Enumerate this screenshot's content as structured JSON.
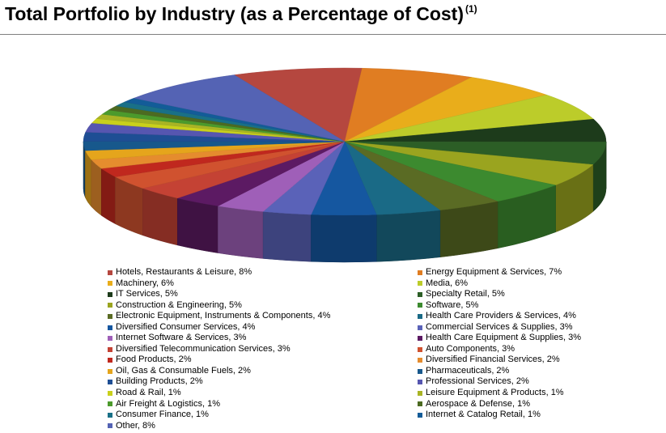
{
  "title": "Total Portfolio by Industry (as a Percentage of Cost)",
  "title_note": "(1)",
  "chart_data": {
    "type": "pie",
    "title": "Total Portfolio by Industry (as a Percentage of Cost)",
    "legend_position": "bottom",
    "slices": [
      {
        "label": "Hotels, Restaurants & Leisure, 8%",
        "value": 8,
        "color": "#b5473f"
      },
      {
        "label": "Energy Equipment & Services, 7%",
        "value": 7,
        "color": "#e07d22"
      },
      {
        "label": "Machinery, 6%",
        "value": 6,
        "color": "#e9ad1b"
      },
      {
        "label": "Media, 6%",
        "value": 6,
        "color": "#bccc2a"
      },
      {
        "label": "IT Services, 5%",
        "value": 5,
        "color": "#1d3b1b"
      },
      {
        "label": "Specialty Retail, 5%",
        "value": 5,
        "color": "#2c5e26"
      },
      {
        "label": "Construction & Engineering, 5%",
        "value": 5,
        "color": "#9aa41f"
      },
      {
        "label": "Software, 5%",
        "value": 5,
        "color": "#3c8a2f"
      },
      {
        "label": "Electronic Equipment, Instruments & Components, 4%",
        "value": 4,
        "color": "#5a6b24"
      },
      {
        "label": "Health Care Providers & Services, 4%",
        "value": 4,
        "color": "#1a6a86"
      },
      {
        "label": "Diversified Consumer Services, 4%",
        "value": 4,
        "color": "#1557a0"
      },
      {
        "label": "Commercial Services & Supplies, 3%",
        "value": 3,
        "color": "#5a62b8"
      },
      {
        "label": "Internet Software & Services, 3%",
        "value": 3,
        "color": "#9f5fb8"
      },
      {
        "label": "Health Care Equipment & Supplies, 3%",
        "value": 3,
        "color": "#5c1a63"
      },
      {
        "label": "Diversified Telecommunication Services, 3%",
        "value": 3,
        "color": "#c44234"
      },
      {
        "label": "Auto Components, 3%",
        "value": 3,
        "color": "#d0522f"
      },
      {
        "label": "Food Products, 2%",
        "value": 2,
        "color": "#c0281e"
      },
      {
        "label": "Diversified Financial Services, 2%",
        "value": 2,
        "color": "#e58c2e"
      },
      {
        "label": "Oil, Gas & Consumable Fuels, 2%",
        "value": 2,
        "color": "#e5a51c"
      },
      {
        "label": "Pharmaceuticals, 2%",
        "value": 2,
        "color": "#17588c"
      },
      {
        "label": "Building Products, 2%",
        "value": 2,
        "color": "#1e4e94"
      },
      {
        "label": "Professional Services, 2%",
        "value": 2,
        "color": "#5656b0"
      },
      {
        "label": "Road & Rail, 1%",
        "value": 1,
        "color": "#c9d01c"
      },
      {
        "label": "Leisure Equipment & Products, 1%",
        "value": 1,
        "color": "#a9b424"
      },
      {
        "label": "Air Freight & Logistics, 1%",
        "value": 1,
        "color": "#4c9a2c"
      },
      {
        "label": "Aerospace & Defense, 1%",
        "value": 1,
        "color": "#4c6a21"
      },
      {
        "label": "Consumer Finance, 1%",
        "value": 1,
        "color": "#197087"
      },
      {
        "label": "Internet & Catalog Retail, 1%",
        "value": 1,
        "color": "#135c98"
      },
      {
        "label": "Other, 8%",
        "value": 8,
        "color": "#5463b4"
      }
    ]
  }
}
